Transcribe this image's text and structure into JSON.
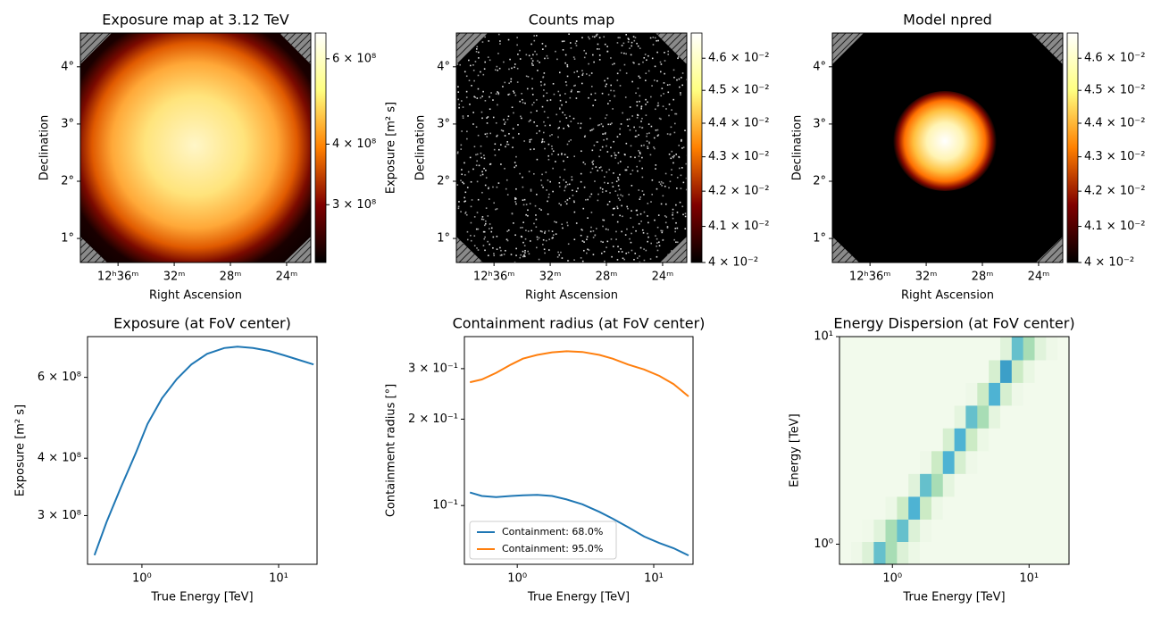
{
  "chart_data": [
    {
      "type": "image",
      "title": "Exposure map at 3.12 TeV",
      "xlabel": "Right Ascension",
      "ylabel": "Declination",
      "xlim": [
        189.67,
        185.57
      ],
      "ylim": [
        0.58,
        4.59
      ],
      "xticks": [
        {
          "value": 189,
          "label": "12ʰ36ᵐ"
        },
        {
          "value": 188,
          "label": "32ᵐ"
        },
        {
          "value": 187,
          "label": "28ᵐ"
        },
        {
          "value": 186,
          "label": "24ᵐ"
        }
      ],
      "yticks": [
        {
          "value": 1,
          "label": "1°"
        },
        {
          "value": 2,
          "label": "2°"
        },
        {
          "value": 3,
          "label": "3°"
        },
        {
          "value": 4,
          "label": "4°"
        }
      ],
      "colormap": [
        "#000000",
        "#800000",
        "#ff8000",
        "#ffff80",
        "#ffffff"
      ],
      "colorbar": {
        "label": "Exposure [m² s]",
        "scale": "log",
        "lim": [
          228000000,
          678000000
        ],
        "ticks": [
          {
            "value": 300000000,
            "label": "3 × 10⁸"
          },
          {
            "value": 400000000,
            "label": "4 × 10⁸"
          },
          {
            "value": 600000000,
            "label": "6 × 10⁸"
          }
        ]
      }
    },
    {
      "type": "image",
      "title": "Counts map",
      "xlabel": "Right Ascension",
      "ylabel": "Declination",
      "xlim": [
        189.67,
        185.57
      ],
      "ylim": [
        0.58,
        4.59
      ],
      "xticks": [
        {
          "value": 189,
          "label": "12ʰ36ᵐ"
        },
        {
          "value": 188,
          "label": "32ᵐ"
        },
        {
          "value": 187,
          "label": "28ᵐ"
        },
        {
          "value": 186,
          "label": "24ᵐ"
        }
      ],
      "yticks": [
        {
          "value": 1,
          "label": "1°"
        },
        {
          "value": 2,
          "label": "2°"
        },
        {
          "value": 3,
          "label": "3°"
        },
        {
          "value": 4,
          "label": "4°"
        }
      ],
      "colormap": [
        "#000000",
        "#800000",
        "#ff8000",
        "#ffff80",
        "#ffffff"
      ],
      "colorbar": {
        "scale": "log",
        "lim": [
          0.04,
          0.0468
        ],
        "ticks": [
          {
            "value": 0.04,
            "label": "4 × 10⁻²"
          },
          {
            "value": 0.041,
            "label": "4.1 × 10⁻²"
          },
          {
            "value": 0.042,
            "label": "4.2 × 10⁻²"
          },
          {
            "value": 0.043,
            "label": "4.3 × 10⁻²"
          },
          {
            "value": 0.044,
            "label": "4.4 × 10⁻²"
          },
          {
            "value": 0.045,
            "label": "4.5 × 10⁻²"
          },
          {
            "value": 0.046,
            "label": "4.6 × 10⁻²"
          }
        ]
      }
    },
    {
      "type": "image",
      "title": "Model npred",
      "xlabel": "Right Ascension",
      "ylabel": "Declination",
      "xlim": [
        189.67,
        185.57
      ],
      "ylim": [
        0.58,
        4.59
      ],
      "xticks": [
        {
          "value": 189,
          "label": "12ʰ36ᵐ"
        },
        {
          "value": 188,
          "label": "32ᵐ"
        },
        {
          "value": 187,
          "label": "28ᵐ"
        },
        {
          "value": 186,
          "label": "24ᵐ"
        }
      ],
      "yticks": [
        {
          "value": 1,
          "label": "1°"
        },
        {
          "value": 2,
          "label": "2°"
        },
        {
          "value": 3,
          "label": "3°"
        },
        {
          "value": 4,
          "label": "4°"
        }
      ],
      "colormap": [
        "#000000",
        "#800000",
        "#ff8000",
        "#ffff80",
        "#ffffff"
      ],
      "colorbar": {
        "scale": "log",
        "lim": [
          0.04,
          0.0468
        ],
        "ticks": [
          {
            "value": 0.04,
            "label": "4 × 10⁻²"
          },
          {
            "value": 0.041,
            "label": "4.1 × 10⁻²"
          },
          {
            "value": 0.042,
            "label": "4.2 × 10⁻²"
          },
          {
            "value": 0.043,
            "label": "4.3 × 10⁻²"
          },
          {
            "value": 0.044,
            "label": "4.4 × 10⁻²"
          },
          {
            "value": 0.045,
            "label": "4.5 × 10⁻²"
          },
          {
            "value": 0.046,
            "label": "4.6 × 10⁻²"
          }
        ]
      }
    },
    {
      "type": "line",
      "title": "Exposure (at FoV center)",
      "xlabel": "True Energy [TeV]",
      "ylabel": "Exposure [m² s]",
      "xscale": "log",
      "yscale": "log",
      "xlim": [
        0.4,
        19.1
      ],
      "ylim": [
        235000000,
        736000000
      ],
      "xticks": [
        {
          "value": 1,
          "label": "10⁰"
        },
        {
          "value": 10,
          "label": "10¹"
        }
      ],
      "yticks": [
        {
          "value": 300000000,
          "label": "3 × 10⁸"
        },
        {
          "value": 400000000,
          "label": "4 × 10⁸"
        },
        {
          "value": 600000000,
          "label": "6 × 10⁸"
        }
      ],
      "x": [
        0.45,
        0.55,
        0.7,
        0.9,
        1.1,
        1.4,
        1.8,
        2.3,
        3.0,
        4.0,
        5.0,
        6.5,
        8.5,
        11,
        14,
        18
      ],
      "series": [
        {
          "color": "#1f77b4",
          "values": [
            246000000,
            290000000,
            345000000,
            410000000,
            475000000,
            540000000,
            595000000,
            640000000,
            675000000,
            695000000,
            700000000,
            695000000,
            685000000,
            670000000,
            655000000,
            640000000
          ]
        }
      ]
    },
    {
      "type": "line",
      "title": "Containment radius (at FoV center)",
      "xlabel": "True Energy [TeV]",
      "ylabel": "Containment radius [°]",
      "xscale": "log",
      "yscale": "log",
      "xlim": [
        0.41,
        19.4
      ],
      "ylim": [
        0.0624,
        0.388
      ],
      "legend": "lower left",
      "xticks": [
        {
          "value": 1,
          "label": "10⁰"
        },
        {
          "value": 10,
          "label": "10¹"
        }
      ],
      "yticks": [
        {
          "value": 0.1,
          "label": "10⁻¹"
        },
        {
          "value": 0.2,
          "label": "2 × 10⁻¹"
        },
        {
          "value": 0.3,
          "label": "3 × 10⁻¹"
        }
      ],
      "x": [
        0.45,
        0.55,
        0.7,
        0.9,
        1.1,
        1.4,
        1.8,
        2.3,
        3.0,
        4.0,
        5.0,
        6.5,
        8.5,
        11,
        14,
        18
      ],
      "series": [
        {
          "name": "Containment: 68.0%",
          "color": "#1f77b4",
          "values": [
            0.111,
            0.108,
            0.107,
            0.108,
            0.1085,
            0.109,
            0.108,
            0.105,
            0.101,
            0.095,
            0.09,
            0.084,
            0.078,
            0.074,
            0.071,
            0.067
          ]
        },
        {
          "name": "Containment: 95.0%",
          "color": "#ff7f0e",
          "values": [
            0.269,
            0.275,
            0.29,
            0.31,
            0.325,
            0.335,
            0.342,
            0.345,
            0.343,
            0.335,
            0.325,
            0.31,
            0.298,
            0.283,
            0.265,
            0.24
          ]
        }
      ]
    },
    {
      "type": "heatmap",
      "title": "Energy Dispersion (at FoV center)",
      "xlabel": "True Energy [TeV]",
      "ylabel": "Energy [TeV]",
      "xscale": "log",
      "yscale": "log",
      "xlim": [
        0.41,
        19.6
      ],
      "ylim": [
        0.8,
        10
      ],
      "xticks": [
        {
          "value": 1,
          "label": "10⁰"
        },
        {
          "value": 10,
          "label": "10¹"
        }
      ],
      "yticks": [
        {
          "value": 1,
          "label": "10⁰"
        },
        {
          "value": 10,
          "label": "10¹"
        }
      ],
      "colormap": [
        "#f7fcf0",
        "#e0f3db",
        "#ccebc5",
        "#a8ddb5",
        "#7bccc4",
        "#4eb3d3",
        "#2b8cbe",
        "#0868ac"
      ],
      "zlim": [
        0,
        0.7
      ],
      "x_edges": [
        0.41,
        0.5,
        0.6,
        0.73,
        0.89,
        1.08,
        1.31,
        1.59,
        1.93,
        2.34,
        2.84,
        3.44,
        4.18,
        5.07,
        6.15,
        7.46,
        9.05,
        10.98,
        13.32,
        16.16,
        19.6
      ],
      "y_edges": [
        0.8,
        1.03,
        1.32,
        1.7,
        2.19,
        2.82,
        3.63,
        4.67,
        6.01,
        7.73,
        10
      ],
      "z": [
        [
          0.02,
          0.04,
          0.12,
          0.45,
          0.3,
          0.12,
          0.05,
          0.02,
          0.02,
          0.02,
          0.02,
          0.02,
          0.02,
          0.02,
          0.02,
          0.02,
          0.02,
          0.02,
          0.02,
          0.02
        ],
        [
          0.02,
          0.02,
          0.03,
          0.1,
          0.3,
          0.45,
          0.12,
          0.04,
          0.02,
          0.02,
          0.02,
          0.02,
          0.02,
          0.02,
          0.02,
          0.02,
          0.02,
          0.02,
          0.02,
          0.02
        ],
        [
          0.02,
          0.02,
          0.02,
          0.02,
          0.05,
          0.2,
          0.5,
          0.2,
          0.05,
          0.02,
          0.02,
          0.02,
          0.02,
          0.02,
          0.02,
          0.02,
          0.02,
          0.02,
          0.02,
          0.02
        ],
        [
          0.02,
          0.02,
          0.02,
          0.02,
          0.02,
          0.02,
          0.1,
          0.45,
          0.3,
          0.08,
          0.02,
          0.02,
          0.02,
          0.02,
          0.02,
          0.02,
          0.02,
          0.02,
          0.02,
          0.02
        ],
        [
          0.02,
          0.02,
          0.02,
          0.02,
          0.02,
          0.02,
          0.02,
          0.04,
          0.2,
          0.5,
          0.15,
          0.04,
          0.02,
          0.02,
          0.02,
          0.02,
          0.02,
          0.02,
          0.02,
          0.02
        ],
        [
          0.02,
          0.02,
          0.02,
          0.02,
          0.02,
          0.02,
          0.02,
          0.02,
          0.02,
          0.15,
          0.5,
          0.2,
          0.05,
          0.02,
          0.02,
          0.02,
          0.02,
          0.02,
          0.02,
          0.02
        ],
        [
          0.02,
          0.02,
          0.02,
          0.02,
          0.02,
          0.02,
          0.02,
          0.02,
          0.02,
          0.02,
          0.08,
          0.45,
          0.3,
          0.08,
          0.02,
          0.02,
          0.02,
          0.02,
          0.02,
          0.02
        ],
        [
          0.02,
          0.02,
          0.02,
          0.02,
          0.02,
          0.02,
          0.02,
          0.02,
          0.02,
          0.02,
          0.02,
          0.04,
          0.2,
          0.5,
          0.15,
          0.04,
          0.02,
          0.02,
          0.02,
          0.02
        ],
        [
          0.02,
          0.02,
          0.02,
          0.02,
          0.02,
          0.02,
          0.02,
          0.02,
          0.02,
          0.02,
          0.02,
          0.02,
          0.02,
          0.15,
          0.55,
          0.2,
          0.06,
          0.02,
          0.02,
          0.02
        ],
        [
          0.02,
          0.02,
          0.02,
          0.02,
          0.02,
          0.02,
          0.02,
          0.02,
          0.02,
          0.02,
          0.02,
          0.02,
          0.02,
          0.02,
          0.1,
          0.45,
          0.3,
          0.1,
          0.04,
          0.02
        ]
      ]
    }
  ]
}
